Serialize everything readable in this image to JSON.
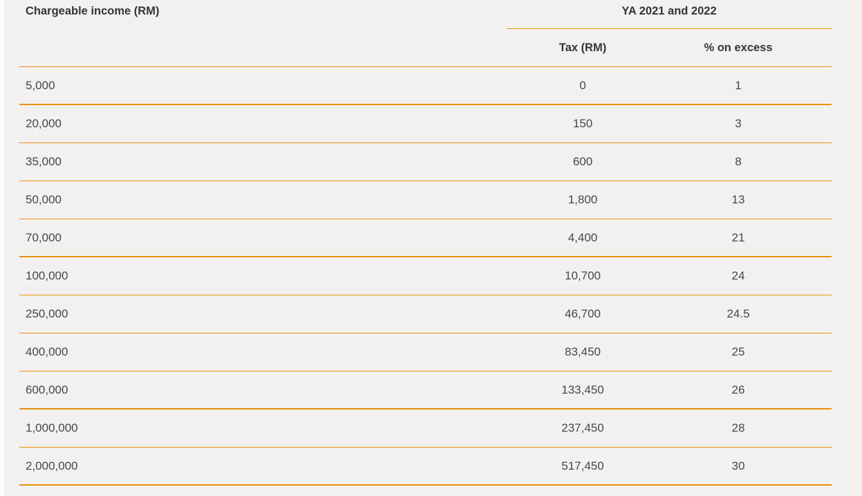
{
  "colors": {
    "accent": "#E8910A",
    "background": "#F2F1F0",
    "heading_text": "#353538",
    "body_text": "#464649"
  },
  "chart_data": {
    "type": "table",
    "group_header": "YA 2021 and 2022",
    "columns": [
      "Chargeable income (RM)",
      "Tax (RM)",
      "% on excess"
    ],
    "rows": [
      [
        "5,000",
        "0",
        "1"
      ],
      [
        "20,000",
        "150",
        "3"
      ],
      [
        "35,000",
        "600",
        "8"
      ],
      [
        "50,000",
        "1,800",
        "13"
      ],
      [
        "70,000",
        "4,400",
        "21"
      ],
      [
        "100,000",
        "10,700",
        "24"
      ],
      [
        "250,000",
        "46,700",
        "24.5"
      ],
      [
        "400,000",
        "83,450",
        "25"
      ],
      [
        "600,000",
        "133,450",
        "26"
      ],
      [
        "1,000,000",
        "237,450",
        "28"
      ],
      [
        "2,000,000",
        "517,450",
        "30"
      ]
    ]
  }
}
